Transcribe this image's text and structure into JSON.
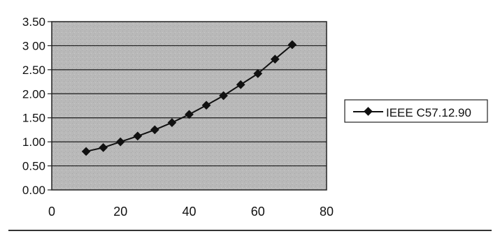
{
  "chart_data": {
    "type": "line",
    "x": [
      10,
      15,
      20,
      25,
      30,
      35,
      40,
      45,
      50,
      55,
      60,
      65,
      70
    ],
    "series": [
      {
        "name": "IEEE C57.12.90",
        "values": [
          0.8,
          0.88,
          1.0,
          1.12,
          1.25,
          1.4,
          1.57,
          1.76,
          1.96,
          2.19,
          2.42,
          2.72,
          3.02
        ]
      }
    ],
    "xlim": [
      0,
      80
    ],
    "ylim": [
      0,
      3.5
    ],
    "xticks": [
      "0",
      "20",
      "40",
      "60",
      "80"
    ],
    "yticks": [
      "0.00",
      "0.50",
      "1.00",
      "1.50",
      "2.00",
      "2.50",
      "3 00",
      "3.50"
    ],
    "legend": "right",
    "grid": "horizontal",
    "colors": {
      "plot_bg": "#b9b9b9",
      "line": "#111111",
      "marker": "#111111"
    }
  }
}
